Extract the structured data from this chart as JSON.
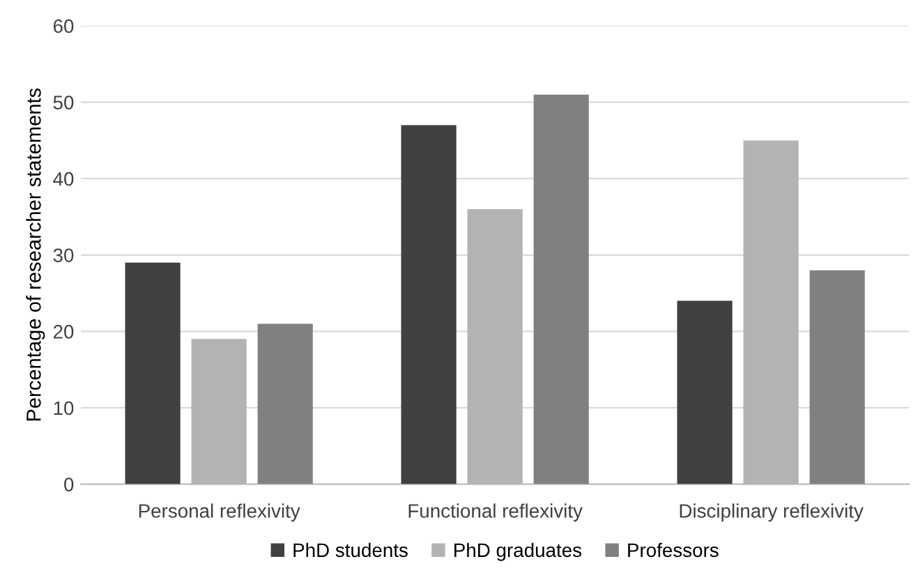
{
  "chart_data": {
    "type": "bar",
    "ylabel": "Percentage of researcher statements",
    "categories": [
      "Personal reflexivity",
      "Functional reflexivity",
      "Disciplinary reflexivity"
    ],
    "series": [
      {
        "name": "PhD students",
        "color": "#404040",
        "values": [
          29,
          47,
          24
        ]
      },
      {
        "name": "PhD graduates",
        "color": "#b3b3b3",
        "values": [
          19,
          36,
          45
        ]
      },
      {
        "name": "Professors",
        "color": "#808080",
        "values": [
          21,
          51,
          28
        ]
      }
    ],
    "ylim": [
      0,
      60
    ],
    "yticks": [
      0,
      10,
      20,
      30,
      40,
      50,
      60
    ],
    "grid": "y",
    "legend": "bottom"
  }
}
